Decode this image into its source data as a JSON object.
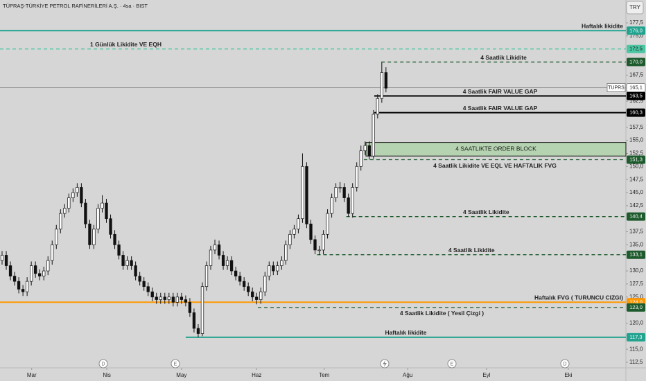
{
  "chart_data": {
    "type": "candlestick",
    "title": "TÜPRAŞ-TÜRKİYE PETROL RAFİNERİLERİ A.Ş. · 4sa · BIST",
    "currency": "TRY",
    "up_color": "#ffffff",
    "down_color": "#111111",
    "border_color": "#111111",
    "open": [
      132,
      133,
      131,
      129,
      128,
      126.5,
      126,
      128,
      131,
      129.5,
      129,
      130,
      132,
      135,
      138,
      141,
      142,
      144,
      145,
      146,
      143,
      139,
      135,
      138,
      142,
      143,
      140,
      137,
      135,
      133,
      131,
      132,
      131,
      129,
      128,
      127,
      126,
      125,
      124.5,
      125,
      124.5,
      125,
      124,
      125,
      124.5,
      124,
      122,
      119,
      118,
      127,
      131,
      134,
      135,
      133,
      131,
      132,
      130,
      129,
      128,
      127,
      126,
      125,
      124.5,
      126,
      129,
      131,
      130,
      131,
      132,
      135,
      137,
      138,
      140,
      150,
      139,
      136,
      134,
      134,
      137,
      141,
      144,
      146,
      146,
      144,
      141,
      146,
      150,
      153,
      154,
      152,
      160,
      163,
      168
    ],
    "high": [
      133.8,
      133.8,
      131.8,
      129.8,
      128.8,
      127.3,
      128.8,
      131.8,
      131.8,
      130.3,
      130.8,
      132.8,
      135.8,
      138.8,
      141.8,
      142.8,
      144.8,
      145.8,
      146.8,
      146.8,
      143.8,
      139.8,
      138.8,
      142.8,
      144.5,
      143.8,
      140.8,
      137.8,
      135.8,
      133.8,
      132.8,
      132.8,
      131.8,
      129.8,
      128.8,
      127.8,
      126.8,
      125.8,
      125.8,
      125.8,
      125.8,
      125.8,
      125.8,
      125.8,
      125.3,
      124.8,
      122.8,
      119.8,
      127.8,
      131.8,
      134.8,
      136,
      135.8,
      133.8,
      132.8,
      132.8,
      130.8,
      129.8,
      128.8,
      127.8,
      126.8,
      125.8,
      126.8,
      129.8,
      131.8,
      131.8,
      131.8,
      132.8,
      135.8,
      137.8,
      138.8,
      140.8,
      152.5,
      150.8,
      139.8,
      136.8,
      134.8,
      137.8,
      141.8,
      144.8,
      146.8,
      147,
      146.8,
      144.8,
      146.8,
      150.8,
      154,
      154.8,
      154.8,
      160.8,
      163.8,
      170,
      169
    ],
    "low": [
      131.2,
      130.2,
      128.2,
      127.2,
      125.7,
      125.2,
      125.2,
      127.2,
      128.7,
      128.2,
      128.2,
      129.2,
      131.2,
      134.2,
      137.2,
      140.2,
      141.2,
      143.2,
      144.2,
      142.2,
      138.2,
      134.2,
      134.2,
      137.2,
      141.2,
      139.2,
      136.2,
      134.2,
      132.2,
      130.2,
      130.2,
      130.2,
      128.2,
      127.2,
      126.2,
      125.2,
      124.2,
      123.7,
      123.7,
      123.7,
      123.7,
      123.2,
      123.2,
      123.7,
      123.2,
      121.2,
      118.2,
      117.3,
      117.5,
      126.2,
      130.2,
      133.2,
      132.2,
      130.2,
      130.2,
      129.2,
      128.2,
      127.2,
      126.2,
      125.2,
      124.2,
      123.6,
      123.7,
      125.2,
      128.2,
      129.2,
      129.2,
      130.2,
      131.2,
      134.2,
      136.2,
      137.2,
      139.2,
      138.2,
      135.2,
      133.2,
      133.1,
      133.2,
      136.2,
      140.2,
      143.2,
      145,
      143.2,
      140.4,
      140.2,
      145.2,
      149.2,
      152.2,
      151.3,
      151.5,
      159.2,
      162.2,
      164.2
    ],
    "close": [
      133,
      131,
      129,
      128,
      126.5,
      126,
      128,
      131,
      129.5,
      129,
      130,
      132,
      135,
      138,
      141,
      142,
      144,
      145,
      146,
      143,
      139,
      135,
      138,
      142,
      143,
      140,
      137,
      135,
      133,
      131,
      132,
      131,
      129,
      128,
      127,
      126,
      125,
      124.5,
      125,
      124.5,
      125,
      124,
      125,
      124.5,
      124,
      122,
      119,
      118,
      127,
      131,
      134,
      135,
      133,
      131,
      132,
      130,
      129,
      128,
      127,
      126,
      125,
      124.5,
      126,
      129,
      131,
      130,
      131,
      132,
      135,
      137,
      138,
      140,
      150,
      139,
      136,
      134,
      134,
      137,
      141,
      144,
      146,
      146,
      144,
      141,
      146,
      150,
      153,
      154,
      152,
      160,
      163,
      168,
      165
    ],
    "xlim": [
      0,
      150
    ],
    "xticks": [
      {
        "value": 7.6,
        "label": "Mar"
      },
      {
        "value": 25.6,
        "label": "Nis"
      },
      {
        "value": 43.5,
        "label": "May"
      },
      {
        "value": 61.5,
        "label": "Haz"
      },
      {
        "value": 77.7,
        "label": "Tem"
      },
      {
        "value": 97.7,
        "label": "Ağu"
      },
      {
        "value": 116.6,
        "label": "Eyl"
      },
      {
        "value": 136.2,
        "label": "Eki"
      }
    ],
    "ylim": [
      112.5,
      177.5
    ],
    "yticks": [
      {
        "value": 177.5,
        "label": "177,5"
      },
      {
        "value": 175,
        "label": "175,0"
      },
      {
        "value": 167.5,
        "label": "167,5"
      },
      {
        "value": 162.5,
        "label": "162,5"
      },
      {
        "value": 157.5,
        "label": "157,5"
      },
      {
        "value": 155,
        "label": "155,0"
      },
      {
        "value": 152.5,
        "label": "152,5"
      },
      {
        "value": 150,
        "label": "150,0"
      },
      {
        "value": 147.5,
        "label": "147,5"
      },
      {
        "value": 145,
        "label": "145,0"
      },
      {
        "value": 142.5,
        "label": "142,5"
      },
      {
        "value": 137.5,
        "label": "137,5"
      },
      {
        "value": 135,
        "label": "135,0"
      },
      {
        "value": 130,
        "label": "130,0"
      },
      {
        "value": 127.5,
        "label": "127,5"
      },
      {
        "value": 125,
        "label": "125,0"
      },
      {
        "value": 120,
        "label": "120,0"
      },
      {
        "value": 115,
        "label": "115,0"
      },
      {
        "value": 112.5,
        "label": "112,5"
      }
    ],
    "current_price": {
      "symbol": "TUPRS",
      "value": 165.1,
      "label": "165,1"
    },
    "levels": [
      {
        "value": 176.0,
        "label": "176,0",
        "text": "Haftalık likidite",
        "color": "#22a38f",
        "dashed": false,
        "start": 0
      },
      {
        "value": 172.5,
        "label": "172,5",
        "text": "1 Günlük Likidite VE EQH",
        "color": "#4cc6a2",
        "dashed": true,
        "start": 0
      },
      {
        "value": 170.0,
        "label": "170,0",
        "text": "4 Saatlik Likidite",
        "color": "#1d5a2c",
        "dashed": true,
        "start": 91.4
      },
      {
        "value": 163.5,
        "label": "163,5",
        "text": "4 Saatlik FAIR VALUE GAP",
        "color": "#000000",
        "dashed": false,
        "start": 89.7
      },
      {
        "value": 160.3,
        "label": "160,3",
        "text": "4 Saatlik FAIR VALUE GAP",
        "color": "#000000",
        "dashed": false,
        "start": 89.7
      },
      {
        "value": 151.3,
        "label": "151,3",
        "text": "4 Saatlik Likidite VE EQL VE HAFTALIK FVG",
        "color": "#1d5a2c",
        "dashed": true,
        "start": 87.2
      },
      {
        "value": 140.4,
        "label": "140,4",
        "text": "4 Saatlik Likidite",
        "color": "#1d5a2c",
        "dashed": true,
        "start": 83
      },
      {
        "value": 133.1,
        "label": "133,1",
        "text": "4 Saatlik Likidite",
        "color": "#1d5a2c",
        "dashed": true,
        "start": 76
      },
      {
        "value": 124.0,
        "label": "124,0",
        "text": "Haftalık FVG ( TURUNCU CIZGI)",
        "color": "#ff9800",
        "dashed": false,
        "start": 0
      },
      {
        "value": 123.0,
        "label": "123,0",
        "text": "4 Saatlik Likidite ( Yesil Çizgi )",
        "color": "#1d5a2c",
        "dashed": true,
        "start": 61.8
      },
      {
        "value": 117.3,
        "label": "117,3",
        "text": "Haftalık likidite",
        "color": "#22a38f",
        "dashed": false,
        "start": 44.5
      }
    ],
    "order_block": {
      "top": 154.6,
      "bottom": 152.0,
      "start": 87.7,
      "text": "4 SAATLIKTE ORDER BLOCK",
      "color": "#b5d3b0"
    },
    "events": [
      "D",
      "E",
      "E",
      "D"
    ]
  }
}
